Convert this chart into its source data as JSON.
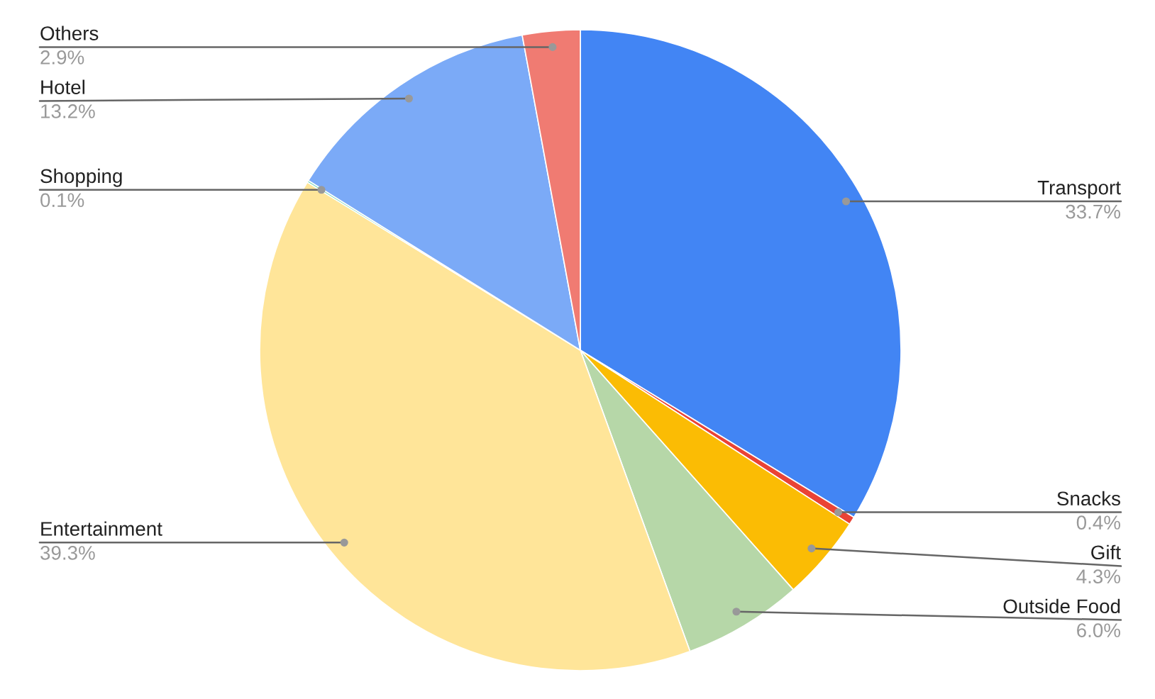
{
  "chart_data": {
    "type": "pie",
    "categories": [
      "Transport",
      "Snacks",
      "Gift",
      "Outside Food",
      "Entertainment",
      "Shopping",
      "Hotel",
      "Others"
    ],
    "values": [
      33.7,
      0.4,
      4.3,
      6.0,
      39.3,
      0.1,
      13.2,
      2.9
    ],
    "colors": [
      "#4285f4",
      "#ea4335",
      "#fbbc04",
      "#b6d7a8",
      "#ffe599",
      "#6fd3b5",
      "#7baaf7",
      "#f07b72"
    ],
    "value_labels": [
      "33.7%",
      "0.4%",
      "4.3%",
      "6.0%",
      "39.3%",
      "0.1%",
      "13.2%",
      "2.9%"
    ],
    "legend": false
  }
}
